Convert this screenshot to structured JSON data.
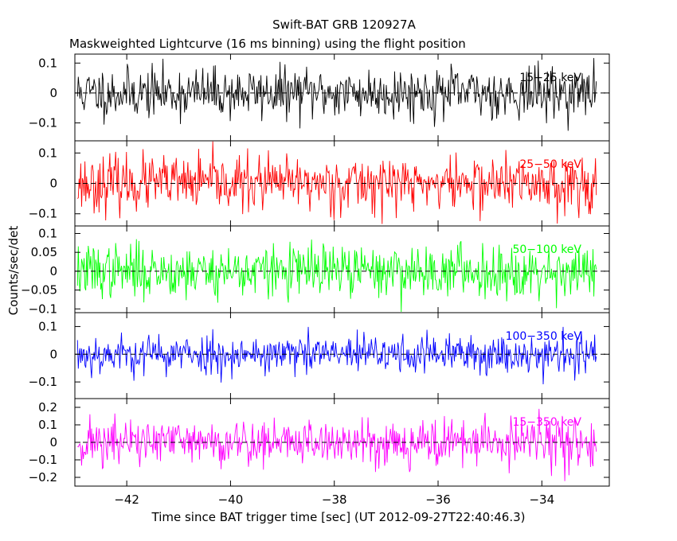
{
  "chart_data": {
    "type": "line",
    "title": "Swift-BAT GRB 120927A",
    "subtitle": "Maskweighted Lightcurve (16 ms binning) using the flight position",
    "xlabel": "Time since BAT trigger time [sec] (UT 2012-09-27T22:40:46.3)",
    "ylabel": "Counts/sec/det",
    "xlim": [
      -43.0,
      -32.7
    ],
    "x_ticks": [
      -42,
      -40,
      -38,
      -36,
      -34
    ],
    "x_tick_labels": [
      "−42",
      "−40",
      "−38",
      "−36",
      "−34"
    ],
    "data_range_x": [
      -42.95,
      -32.95
    ],
    "bin_width_s": 0.016,
    "reference_line_y": 0,
    "panels": [
      {
        "name": "15−25 keV",
        "color": "#000000",
        "ylim": [
          -0.16,
          0.13
        ],
        "yticks": [
          -0.1,
          0,
          0.1
        ],
        "ytick_labels": [
          "−0.1",
          "0",
          "0.1"
        ],
        "noise_sigma": 0.042,
        "seed": 11
      },
      {
        "name": "25−50 keV",
        "color": "#ff0000",
        "ylim": [
          -0.14,
          0.14
        ],
        "yticks": [
          -0.1,
          0,
          0.1
        ],
        "ytick_labels": [
          "−0.1",
          "0",
          "0.1"
        ],
        "noise_sigma": 0.045,
        "seed": 23
      },
      {
        "name": "50−100 keV",
        "color": "#00ff00",
        "ylim": [
          -0.11,
          0.12
        ],
        "yticks": [
          -0.1,
          -0.05,
          0,
          0.05,
          0.1
        ],
        "ytick_labels": [
          "−0.1",
          "−0.05",
          "0",
          "0.05",
          "0.1"
        ],
        "noise_sigma": 0.035,
        "seed": 37
      },
      {
        "name": "100−350 keV",
        "color": "#0000ff",
        "ylim": [
          -0.16,
          0.15
        ],
        "yticks": [
          -0.1,
          0,
          0.1
        ],
        "ytick_labels": [
          "−0.1",
          "0",
          "0.1"
        ],
        "noise_sigma": 0.036,
        "seed": 53
      },
      {
        "name": "15−350 keV",
        "color": "#ff00ff",
        "ylim": [
          -0.25,
          0.25
        ],
        "yticks": [
          -0.2,
          -0.1,
          0,
          0.1,
          0.2
        ],
        "ytick_labels": [
          "−0.2",
          "−0.1",
          "0",
          "0.1",
          "0.2"
        ],
        "noise_sigma": 0.07,
        "seed": 71
      }
    ]
  }
}
